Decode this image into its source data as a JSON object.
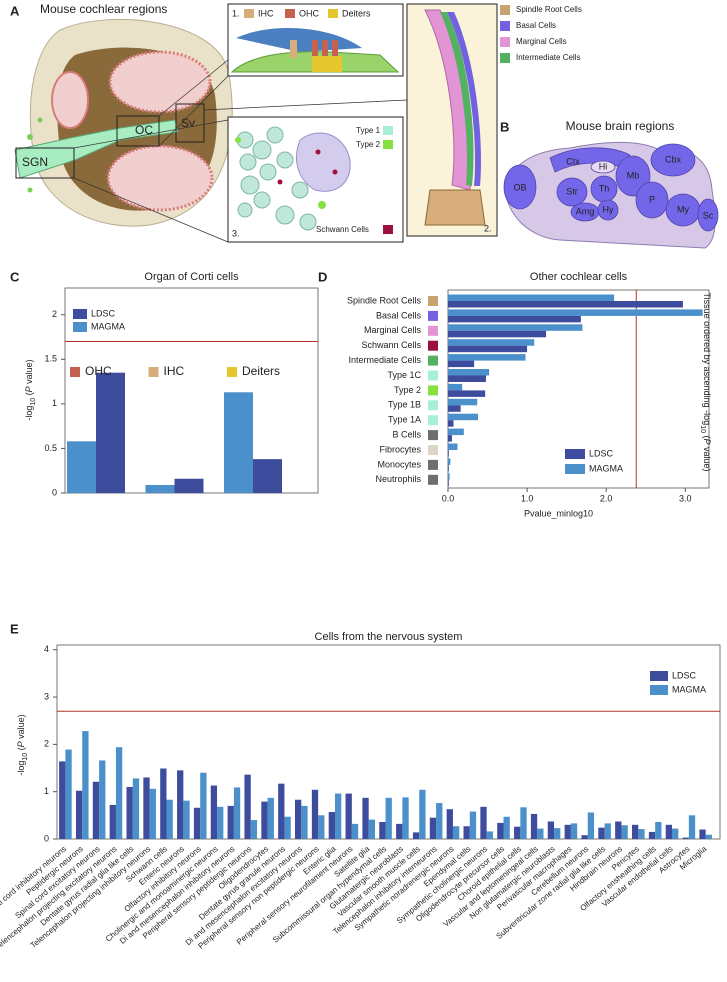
{
  "panel_a": {
    "letter": "A",
    "title": "Mouse cochlear regions",
    "regions": [
      "OC",
      "Sv",
      "SGN"
    ],
    "inset1": {
      "number": "1.",
      "legend": [
        "IHC",
        "OHC",
        "Deiters"
      ]
    },
    "inset2": {
      "number": "2."
    },
    "inset3": {
      "number": "3.",
      "legend": [
        "Type 1",
        "Type 2",
        "Schwann Cells"
      ]
    },
    "legend": [
      "Spindle Root Cells",
      "Basal Cells",
      "Marginal Cells",
      "Intermediate Cells"
    ]
  },
  "panel_b": {
    "letter": "B",
    "title": "Mouse brain regions",
    "regions": [
      "OB",
      "Ctx",
      "Hi",
      "Str",
      "Th",
      "Mb",
      "Cbx",
      "Amg",
      "Hy",
      "P",
      "My",
      "Sc"
    ]
  },
  "chart_data": [
    {
      "type": "bar",
      "panel": "C",
      "title": "Organ of Corti cells",
      "ylabel": [
        "-log",
        "10",
        " (",
        "P",
        " value)"
      ],
      "categories": [
        "OHC",
        "IHC",
        "Deiters"
      ],
      "category_colors": [
        "#c6604f",
        "#d7ad7c",
        "#e5c62c"
      ],
      "series": [
        {
          "name": "LDSC",
          "color": "#3e4c9e",
          "values": [
            1.35,
            0.16,
            0.38
          ]
        },
        {
          "name": "MAGMA",
          "color": "#4b8fcb",
          "values": [
            0.58,
            0.09,
            1.13
          ]
        }
      ],
      "ylim": [
        0,
        2.3
      ],
      "yticks": [
        0,
        0.5,
        1,
        1.5,
        2
      ],
      "threshold": 1.7,
      "threshold_color": "#b5322c"
    },
    {
      "type": "barh",
      "panel": "D",
      "title": "Other cochlear cells",
      "xlabel": "Pvalue_minlog10",
      "ylabel": [
        "Tissue ordered by ascending -log",
        "10",
        " (",
        "P",
        " value)"
      ],
      "categories": [
        "Spindle Root Cells",
        "Basal Cells",
        "Marginal Cells",
        "Schwann Cells",
        "Intermediate Cells",
        "Type 1C",
        "Type 2",
        "Type 1B",
        "Type 1A",
        "B Cells",
        "Fibrocytes",
        "Monocytes",
        "Neutrophils"
      ],
      "category_colors": [
        "#c9a272",
        "#7262e2",
        "#e294d4",
        "#9c1040",
        "#52b262",
        "#a8f0d4",
        "#86e040",
        "#a8f0d4",
        "#a8f0d4",
        "#6e6e6e",
        "#dcd4c4",
        "#6e6e6e",
        "#6e6e6e"
      ],
      "series": [
        {
          "name": "LDSC",
          "color": "#3e4c9e",
          "values": [
            2.97,
            1.68,
            1.24,
            1.0,
            0.33,
            0.48,
            0.47,
            0.16,
            0.07,
            0.05,
            0.01,
            0.01,
            0.01
          ]
        },
        {
          "name": "MAGMA",
          "color": "#4b8fcb",
          "values": [
            2.1,
            3.22,
            1.7,
            1.09,
            0.98,
            0.52,
            0.18,
            0.37,
            0.38,
            0.2,
            0.12,
            0.03,
            0.02
          ]
        }
      ],
      "xlim": [
        0,
        3.3
      ],
      "xticks": [
        {
          "value": 0,
          "label": "0.0"
        },
        {
          "value": 1,
          "label": "1.0"
        },
        {
          "value": 2,
          "label": "2.0"
        },
        {
          "value": 3,
          "label": "3.0"
        }
      ],
      "threshold": 2.38,
      "threshold_color": "#b5322c"
    },
    {
      "type": "bar",
      "panel": "E",
      "title": "Cells from the nervous system",
      "ylabel": [
        "-log",
        "10",
        " (",
        "P",
        " value)"
      ],
      "categories": [
        "Spinal cord inhibitory neurons",
        "Peptidergic neurons",
        "Spinal cord excitatory neurons",
        "Telencephalon projecting excitatory neurons",
        "Dentate gyrus radial glia like cells",
        "Telencephalon projecting inhibitory neurons",
        "Schwann cells",
        "Enteric neurons",
        "Olfactory inhibitory neurons",
        "Cholinergic and monoaminergic neurons",
        "Di and mesencephalon inhibitory neurons",
        "Peripheral sensory peptidergic neurons",
        "Oligodendrocytes",
        "Dentate gyrus granule neurons",
        "Di and mesencephalon excitatory neurons",
        "Peripheral sensory non peptidergic neurons",
        "Enteric glia",
        "Peripheral sensory neurofilament neurons",
        "Satellite glia",
        "Subcommissural organ hypendymal cells",
        "Glutamatergic neuroblasts",
        "Vascular smooth muscle cells",
        "Telencephalon inhibitory interneurons",
        "Sympathetic noradrenergic neurons",
        "Ependymal cells",
        "Sympathetic cholinergic neurons",
        "Oligodendrocyte precursor cells",
        "Choroid epithelial cells",
        "Vascular and leptomeningeal cells",
        "Non glutamatergic neuroblasts",
        "Perivascular macrophages",
        "Cerebellum neurons",
        "Subventricular zone radial glia like cells",
        "Hindbrain neurons",
        "Pericytes",
        "Olfactory ensheathing cells",
        "Vascular endothelial cells",
        "Astrocytes",
        "Microglia"
      ],
      "series": [
        {
          "name": "LDSC",
          "color": "#3e4c9e",
          "values": [
            1.64,
            1.02,
            1.21,
            0.72,
            1.1,
            1.3,
            1.49,
            1.45,
            0.66,
            1.13,
            0.7,
            1.36,
            0.79,
            1.17,
            0.83,
            1.04,
            0.57,
            0.96,
            0.87,
            0.36,
            0.32,
            0.14,
            0.45,
            0.63,
            0.27,
            0.68,
            0.34,
            0.26,
            0.53,
            0.37,
            0.3,
            0.08,
            0.24,
            0.37,
            0.3,
            0.15,
            0.3,
            0.03,
            0.2
          ]
        },
        {
          "name": "MAGMA",
          "color": "#4b8fcb",
          "values": [
            1.89,
            2.28,
            1.66,
            1.94,
            1.28,
            1.06,
            0.83,
            0.81,
            1.4,
            0.68,
            1.09,
            0.4,
            0.87,
            0.47,
            0.7,
            0.5,
            0.96,
            0.32,
            0.41,
            0.87,
            0.88,
            1.04,
            0.76,
            0.27,
            0.58,
            0.16,
            0.47,
            0.67,
            0.22,
            0.23,
            0.33,
            0.56,
            0.33,
            0.29,
            0.21,
            0.36,
            0.22,
            0.5,
            0.09
          ]
        }
      ],
      "ylim": [
        0,
        4.1
      ],
      "yticks": [
        0,
        1,
        2,
        3,
        4
      ],
      "threshold": 2.7,
      "threshold_color": "#b5322c"
    }
  ]
}
